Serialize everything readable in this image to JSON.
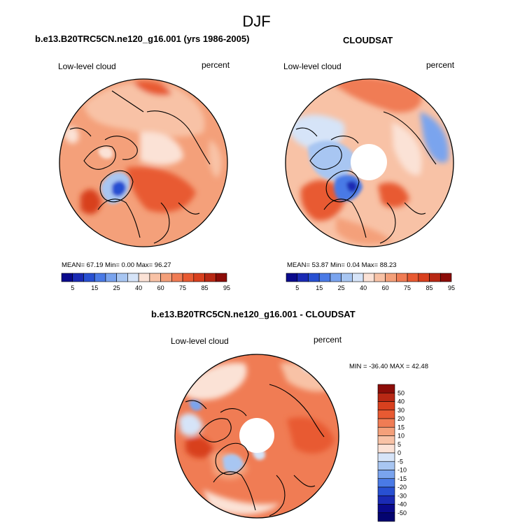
{
  "title": "DJF",
  "panels": [
    {
      "id": "model",
      "title": "b.e13.B20TRC5CN.ne120_g16.001 (yrs 1986-2005)",
      "left_label": "Low-level cloud",
      "right_label": "percent",
      "stats": "MEAN=  67.19  Min=   0.00  Max=  96.27"
    },
    {
      "id": "obs",
      "title": "CLOUDSAT",
      "left_label": "Low-level cloud",
      "right_label": "percent",
      "stats": "MEAN=  53.87  Min=   0.04  Max=  88.23"
    },
    {
      "id": "diff",
      "title": "b.e13.B20TRC5CN.ne120_g16.001 - CLOUDSAT",
      "left_label": "Low-level cloud",
      "right_label": "percent",
      "stats": "MIN = -36.40 MAX =  42.48"
    }
  ],
  "chart_data": [
    {
      "type": "heatmap",
      "projection": "north-polar-stereographic",
      "title": "b.e13.B20TRC5CN.ne120_g16.001 (yrs 1986-2005)",
      "variable": "Low-level cloud",
      "units": "percent",
      "mean": 67.19,
      "min": 0.0,
      "max": 96.27,
      "levels": [
        5,
        10,
        15,
        20,
        25,
        30,
        40,
        50,
        60,
        70,
        75,
        80,
        85,
        90,
        95
      ],
      "tick_labels": [
        "5",
        "15",
        "25",
        "40",
        "60",
        "75",
        "85",
        "95"
      ]
    },
    {
      "type": "heatmap",
      "projection": "north-polar-stereographic",
      "title": "CLOUDSAT",
      "variable": "Low-level cloud",
      "units": "percent",
      "mean": 53.87,
      "min": 0.04,
      "max": 88.23,
      "levels": [
        5,
        10,
        15,
        20,
        25,
        30,
        40,
        50,
        60,
        70,
        75,
        80,
        85,
        90,
        95
      ],
      "tick_labels": [
        "5",
        "15",
        "25",
        "40",
        "60",
        "75",
        "85",
        "95"
      ]
    },
    {
      "type": "heatmap",
      "projection": "north-polar-stereographic",
      "title": "b.e13.B20TRC5CN.ne120_g16.001 - CLOUDSAT",
      "variable": "Low-level cloud",
      "units": "percent",
      "min": -36.4,
      "max": 42.48,
      "levels": [
        -50,
        -40,
        -30,
        -20,
        -15,
        -10,
        -5,
        0,
        5,
        10,
        15,
        20,
        30,
        40,
        50
      ],
      "tick_labels": [
        "50",
        "40",
        "30",
        "20",
        "15",
        "10",
        "5",
        "0",
        "-5",
        "-10",
        "-15",
        "-20",
        "-30",
        "-40",
        "-50"
      ]
    }
  ],
  "colors": {
    "abs_scale": [
      "#0a0a8c",
      "#1a2ab4",
      "#2850d2",
      "#4a7ae6",
      "#7aa4ee",
      "#a8c6f2",
      "#d6e4f8",
      "#fbe2d6",
      "#f8c2a6",
      "#f4a07a",
      "#f07c54",
      "#e85a32",
      "#d8401e",
      "#b82814",
      "#8c0c08"
    ],
    "diff_scale": [
      "#8c0c08",
      "#b82814",
      "#d8401e",
      "#e85a32",
      "#f07c54",
      "#f4a07a",
      "#f8c2a6",
      "#fbe2d6",
      "#d6e4f8",
      "#a8c6f2",
      "#7aa4ee",
      "#4a7ae6",
      "#2850d2",
      "#1a2ab4",
      "#0a0a8c",
      "#040470"
    ]
  }
}
